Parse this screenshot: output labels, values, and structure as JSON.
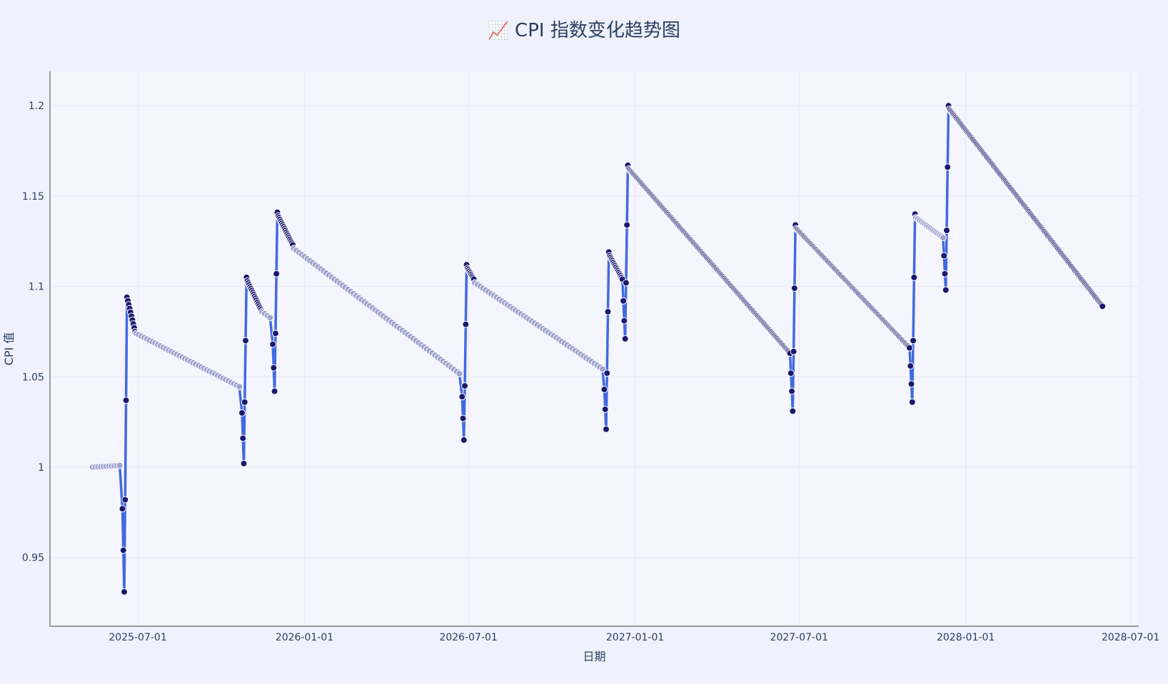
{
  "title_icon": "📈",
  "chart_data": {
    "type": "line",
    "title": "CPI 指数变化趋势图",
    "xlabel": "日期",
    "ylabel": "CPI 值",
    "x_ticks": [
      "2025-07-01",
      "2026-01-01",
      "2026-07-01",
      "2027-01-01",
      "2027-07-01",
      "2028-01-01",
      "2028-07-01"
    ],
    "y_ticks": [
      0.95,
      1,
      1.05,
      1.1,
      1.15,
      1.2
    ],
    "y_tick_labels": [
      "0.95",
      "1",
      "1.05",
      "1.1",
      "1.15",
      "1.2"
    ],
    "xlim": [
      "2025-03-26",
      "2028-07-10"
    ],
    "ylim": [
      0.912,
      1.219
    ],
    "grid": true,
    "colors": {
      "line": "#4169e1",
      "marker": "#191970",
      "marker_light": "#9fa3cf",
      "background": "#f4f5fd",
      "paper": "#eff1fc"
    },
    "series": [
      {
        "segments": [
          {
            "kind": "flat",
            "start": "2025-05-12",
            "end": "2025-06-13",
            "from": 1.0,
            "to": 1.001,
            "step": 3,
            "light": true
          },
          {
            "kind": "spike",
            "points": [
              [
                "2025-06-14",
                0.977
              ],
              [
                "2025-06-15",
                0.954
              ],
              [
                "2025-06-16",
                0.931
              ],
              [
                "2025-06-17",
                0.982
              ],
              [
                "2025-06-18",
                1.037
              ],
              [
                "2025-06-19",
                1.094
              ]
            ]
          },
          {
            "kind": "decay",
            "start": "2025-06-20",
            "end": "2025-06-28",
            "from": 1.092,
            "to": 1.075,
            "step": 1,
            "light": false
          },
          {
            "kind": "decay",
            "start": "2025-06-29",
            "end": "2025-10-23",
            "from": 1.074,
            "to": 1.044,
            "step": 3,
            "light": true
          },
          {
            "kind": "spike",
            "points": [
              [
                "2025-10-24",
                1.03
              ],
              [
                "2025-10-25",
                1.016
              ],
              [
                "2025-10-26",
                1.002
              ],
              [
                "2025-10-27",
                1.036
              ],
              [
                "2025-10-28",
                1.07
              ],
              [
                "2025-10-29",
                1.105
              ]
            ]
          },
          {
            "kind": "decay",
            "start": "2025-10-30",
            "end": "2025-11-14",
            "from": 1.103,
            "to": 1.087,
            "step": 1,
            "light": false
          },
          {
            "kind": "decay",
            "start": "2025-11-15",
            "end": "2025-11-26",
            "from": 1.086,
            "to": 1.082,
            "step": 3,
            "light": true
          },
          {
            "kind": "spike",
            "points": [
              [
                "2025-11-27",
                1.068
              ],
              [
                "2025-11-28",
                1.055
              ],
              [
                "2025-11-29",
                1.042
              ],
              [
                "2025-11-30",
                1.074
              ],
              [
                "2025-12-01",
                1.107
              ],
              [
                "2025-12-02",
                1.141
              ]
            ]
          },
          {
            "kind": "decay",
            "start": "2025-12-03",
            "end": "2025-12-19",
            "from": 1.139,
            "to": 1.123,
            "step": 1,
            "light": false
          },
          {
            "kind": "decay",
            "start": "2025-12-20",
            "end": "2026-06-23",
            "from": 1.121,
            "to": 1.051,
            "step": 3,
            "light": true
          },
          {
            "kind": "spike",
            "points": [
              [
                "2026-06-24",
                1.039
              ],
              [
                "2026-06-25",
                1.027
              ],
              [
                "2026-06-26",
                1.015
              ],
              [
                "2026-06-27",
                1.045
              ],
              [
                "2026-06-28",
                1.079
              ],
              [
                "2026-06-29",
                1.112
              ]
            ]
          },
          {
            "kind": "decay",
            "start": "2026-06-30",
            "end": "2026-07-07",
            "from": 1.11,
            "to": 1.104,
            "step": 1,
            "light": false
          },
          {
            "kind": "decay",
            "start": "2026-07-08",
            "end": "2026-11-27",
            "from": 1.102,
            "to": 1.054,
            "step": 3,
            "light": true
          },
          {
            "kind": "spike",
            "points": [
              [
                "2026-11-28",
                1.043
              ],
              [
                "2026-11-29",
                1.032
              ],
              [
                "2026-11-30",
                1.021
              ],
              [
                "2026-12-01",
                1.052
              ],
              [
                "2026-12-02",
                1.086
              ],
              [
                "2026-12-03",
                1.119
              ]
            ]
          },
          {
            "kind": "decay",
            "start": "2026-12-04",
            "end": "2026-12-18",
            "from": 1.117,
            "to": 1.104,
            "step": 1,
            "light": false
          },
          {
            "kind": "spike",
            "points": [
              [
                "2026-12-19",
                1.092
              ],
              [
                "2026-12-20",
                1.081
              ],
              [
                "2026-12-21",
                1.071
              ],
              [
                "2026-12-22",
                1.102
              ],
              [
                "2026-12-23",
                1.134
              ],
              [
                "2026-12-24",
                1.167
              ]
            ]
          },
          {
            "kind": "decay",
            "start": "2026-12-25",
            "end": "2027-06-21",
            "from": 1.165,
            "to": 1.063,
            "step": 1,
            "light": false
          },
          {
            "kind": "spike",
            "points": [
              [
                "2027-06-22",
                1.052
              ],
              [
                "2027-06-23",
                1.042
              ],
              [
                "2027-06-24",
                1.031
              ],
              [
                "2027-06-25",
                1.064
              ],
              [
                "2027-06-26",
                1.099
              ],
              [
                "2027-06-27",
                1.134
              ]
            ]
          },
          {
            "kind": "decay",
            "start": "2027-06-28",
            "end": "2027-10-31",
            "from": 1.132,
            "to": 1.066,
            "step": 1,
            "light": false
          },
          {
            "kind": "spike",
            "points": [
              [
                "2027-11-01",
                1.056
              ],
              [
                "2027-11-02",
                1.046
              ],
              [
                "2027-11-03",
                1.036
              ],
              [
                "2027-11-04",
                1.07
              ],
              [
                "2027-11-05",
                1.105
              ],
              [
                "2027-11-06",
                1.14
              ]
            ]
          },
          {
            "kind": "decay",
            "start": "2027-11-07",
            "end": "2027-12-07",
            "from": 1.138,
            "to": 1.127,
            "step": 2,
            "light": true
          },
          {
            "kind": "spike",
            "points": [
              [
                "2027-12-08",
                1.117
              ],
              [
                "2027-12-09",
                1.107
              ],
              [
                "2027-12-10",
                1.098
              ],
              [
                "2027-12-11",
                1.131
              ],
              [
                "2027-12-12",
                1.166
              ],
              [
                "2027-12-13",
                1.2
              ]
            ]
          },
          {
            "kind": "decay",
            "start": "2027-12-14",
            "end": "2028-05-31",
            "from": 1.198,
            "to": 1.089,
            "step": 1,
            "light": false
          }
        ]
      }
    ]
  }
}
